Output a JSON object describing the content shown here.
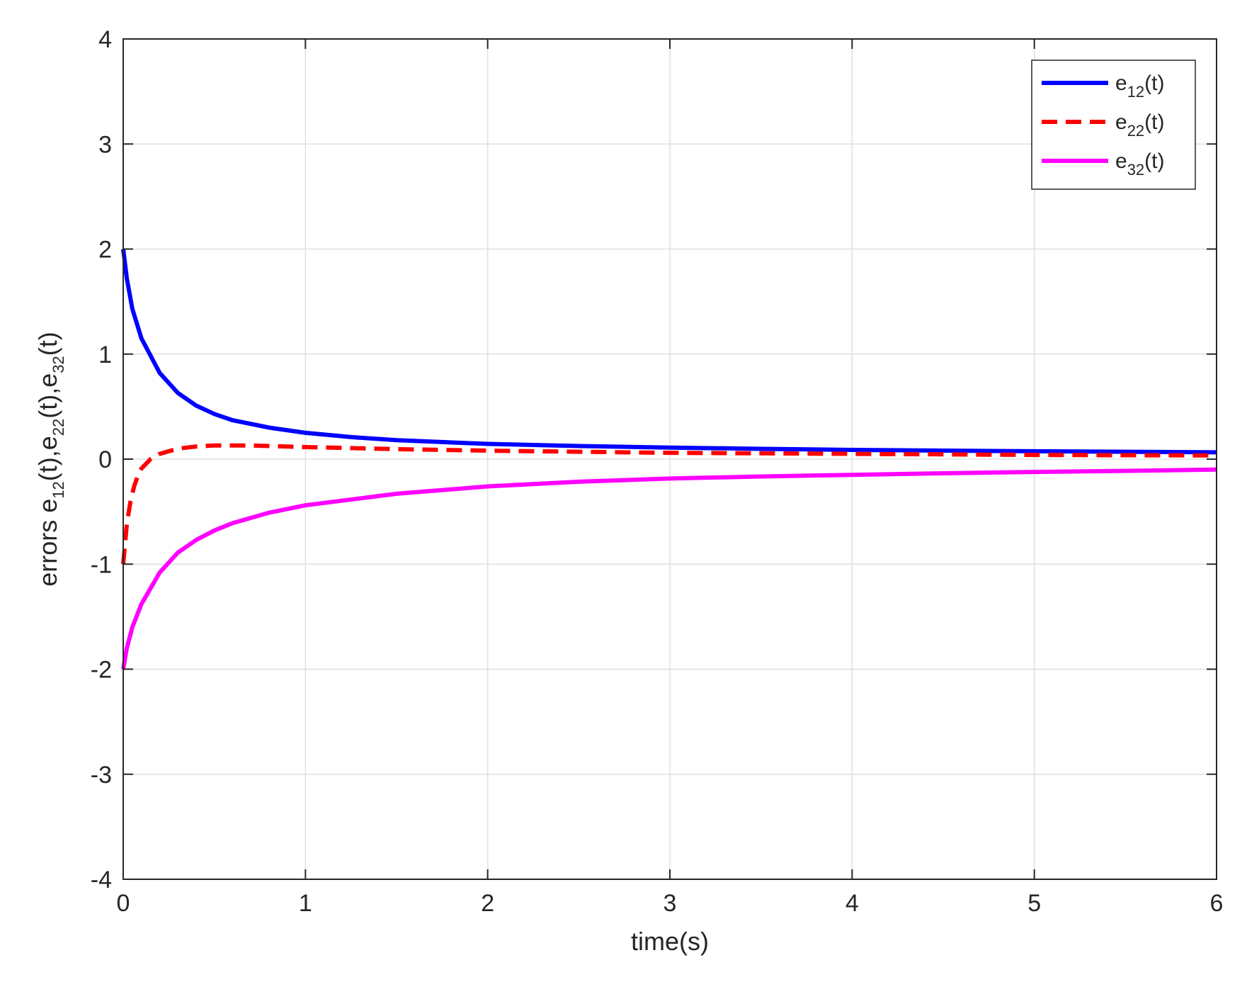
{
  "chart_data": {
    "type": "line",
    "title": "",
    "xlabel": "time(s)",
    "ylabel": {
      "prefix": "errors ",
      "parts": [
        {
          "base": "e",
          "sub": "12",
          "rest": "(t),"
        },
        {
          "base": "e",
          "sub": "22",
          "rest": "(t),"
        },
        {
          "base": "e",
          "sub": "32",
          "rest": "(t)"
        }
      ]
    },
    "xlim": [
      0,
      6
    ],
    "ylim": [
      -4,
      4
    ],
    "xticks": [
      0,
      1,
      2,
      3,
      4,
      5,
      6
    ],
    "yticks": [
      -4,
      -3,
      -2,
      -1,
      0,
      1,
      2,
      3,
      4
    ],
    "grid": true,
    "legend_position": "top-right",
    "series": [
      {
        "name": {
          "base": "e",
          "sub": "12",
          "rest": "(t)"
        },
        "color": "#0000ff",
        "style": "solid",
        "x": [
          0,
          0.02,
          0.05,
          0.1,
          0.2,
          0.3,
          0.4,
          0.5,
          0.6,
          0.8,
          1.0,
          1.25,
          1.5,
          2.0,
          2.5,
          3.0,
          3.5,
          4.0,
          4.5,
          5.0,
          5.5,
          6.0
        ],
        "y": [
          2.0,
          1.72,
          1.43,
          1.15,
          0.82,
          0.63,
          0.51,
          0.43,
          0.37,
          0.3,
          0.25,
          0.21,
          0.18,
          0.145,
          0.125,
          0.11,
          0.098,
          0.088,
          0.081,
          0.075,
          0.07,
          0.065
        ]
      },
      {
        "name": {
          "base": "e",
          "sub": "22",
          "rest": "(t)"
        },
        "color": "#ff0000",
        "style": "dashed",
        "x": [
          0,
          0.02,
          0.04,
          0.06,
          0.08,
          0.1,
          0.15,
          0.2,
          0.3,
          0.4,
          0.5,
          0.6,
          0.7,
          0.8,
          1.0,
          1.5,
          2.0,
          2.5,
          3.0,
          3.5,
          4.0,
          4.5,
          5.0,
          5.5,
          6.0
        ],
        "y": [
          -1.0,
          -0.62,
          -0.4,
          -0.26,
          -0.16,
          -0.09,
          0.0,
          0.05,
          0.1,
          0.12,
          0.13,
          0.13,
          0.13,
          0.125,
          0.115,
          0.095,
          0.08,
          0.07,
          0.06,
          0.055,
          0.05,
          0.045,
          0.04,
          0.037,
          0.035
        ]
      },
      {
        "name": {
          "base": "e",
          "sub": "32",
          "rest": "(t)"
        },
        "color": "#ff00ff",
        "style": "solid",
        "x": [
          0,
          0.02,
          0.05,
          0.1,
          0.2,
          0.3,
          0.4,
          0.5,
          0.6,
          0.8,
          1.0,
          1.5,
          2.0,
          2.5,
          3.0,
          3.5,
          4.0,
          4.5,
          5.0,
          5.5,
          6.0
        ],
        "y": [
          -2.0,
          -1.8,
          -1.6,
          -1.38,
          -1.08,
          -0.89,
          -0.77,
          -0.68,
          -0.61,
          -0.51,
          -0.44,
          -0.33,
          -0.26,
          -0.215,
          -0.185,
          -0.165,
          -0.15,
          -0.135,
          -0.122,
          -0.112,
          -0.1
        ]
      }
    ]
  }
}
